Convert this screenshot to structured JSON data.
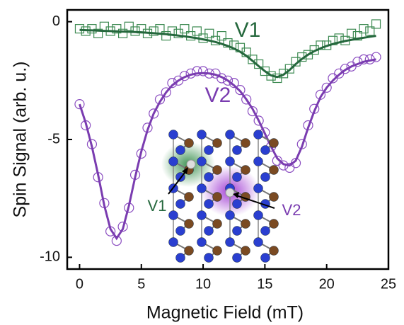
{
  "chart_data": {
    "type": "scatter",
    "x_label": "Magnetic Field (mT)",
    "y_label": "Spin Signal (arb. u.)",
    "x": [
      0,
      0.5,
      1,
      1.5,
      2,
      2.5,
      3,
      3.5,
      4,
      4.5,
      5,
      5.5,
      6,
      6.5,
      7,
      7.5,
      8,
      8.5,
      9,
      9.5,
      10,
      10.5,
      11,
      11.5,
      12,
      12.5,
      13,
      13.5,
      14,
      14.5,
      15,
      15.5,
      16,
      16.5,
      17,
      17.5,
      18,
      18.5,
      19,
      19.5,
      20,
      20.5,
      21,
      21.5,
      22,
      22.5,
      23,
      23.5,
      24
    ],
    "series": [
      {
        "color": "#3d8a52",
        "marker": "square",
        "values": [
          -0.3,
          -0.4,
          -0.3,
          -0.5,
          -0.2,
          -0.4,
          -0.3,
          -0.5,
          -0.2,
          -0.4,
          -0.3,
          -0.5,
          -0.4,
          -0.3,
          -0.6,
          -0.4,
          -0.5,
          -0.3,
          -0.6,
          -0.4,
          -0.7,
          -0.5,
          -0.8,
          -0.6,
          -0.9,
          -1.0,
          -1.1,
          -1.3,
          -1.6,
          -1.8,
          -2.1,
          -2.3,
          -2.4,
          -2.2,
          -2.0,
          -1.7,
          -1.5,
          -1.4,
          -1.2,
          -1.0,
          -1.0,
          -0.8,
          -0.7,
          -0.8,
          -0.5,
          -0.6,
          -0.3,
          -0.4,
          -0.1
        ]
      },
      {
        "color": "#25683d",
        "marker": "line",
        "values": [
          -0.35,
          -0.36,
          -0.37,
          -0.38,
          -0.39,
          -0.4,
          -0.41,
          -0.42,
          -0.43,
          -0.44,
          -0.45,
          -0.47,
          -0.49,
          -0.51,
          -0.53,
          -0.56,
          -0.59,
          -0.62,
          -0.66,
          -0.7,
          -0.75,
          -0.8,
          -0.86,
          -0.94,
          -1.03,
          -1.14,
          -1.28,
          -1.45,
          -1.66,
          -1.89,
          -2.1,
          -2.28,
          -2.35,
          -2.25,
          -2.05,
          -1.8,
          -1.58,
          -1.4,
          -1.25,
          -1.13,
          -1.03,
          -0.95,
          -0.88,
          -0.82,
          -0.77,
          -0.72,
          -0.68,
          -0.64,
          -0.6
        ]
      },
      {
        "color": "#8a4cc0",
        "marker": "circle",
        "values": [
          -3.5,
          -4.4,
          -5.2,
          -6.6,
          -7.7,
          -8.9,
          -9.3,
          -8.7,
          -7.9,
          -6.5,
          -5.6,
          -4.5,
          -3.9,
          -3.3,
          -3.0,
          -2.6,
          -2.5,
          -2.3,
          -2.2,
          -2.1,
          -2.1,
          -2.2,
          -2.2,
          -2.4,
          -2.5,
          -2.6,
          -2.9,
          -3.3,
          -3.8,
          -4.2,
          -4.7,
          -5.3,
          -5.9,
          -6.1,
          -6.2,
          -6.0,
          -5.2,
          -4.4,
          -3.7,
          -3.1,
          -2.8,
          -2.4,
          -2.2,
          -2.0,
          -1.9,
          -1.7,
          -1.6,
          -1.6,
          -1.5
        ]
      },
      {
        "color": "#7a3cb0",
        "marker": "line",
        "values": [
          -3.5,
          -4.3,
          -5.3,
          -6.5,
          -7.8,
          -8.8,
          -9.2,
          -8.8,
          -7.8,
          -6.6,
          -5.5,
          -4.6,
          -3.9,
          -3.4,
          -3.0,
          -2.7,
          -2.5,
          -2.35,
          -2.25,
          -2.2,
          -2.18,
          -2.2,
          -2.25,
          -2.35,
          -2.5,
          -2.7,
          -2.95,
          -3.3,
          -3.7,
          -4.2,
          -4.75,
          -5.3,
          -5.8,
          -6.05,
          -6.1,
          -5.9,
          -5.3,
          -4.5,
          -3.8,
          -3.2,
          -2.8,
          -2.5,
          -2.25,
          -2.05,
          -1.9,
          -1.8,
          -1.7,
          -1.65,
          -1.6
        ]
      }
    ],
    "annotations": [
      "V1",
      "V2",
      "V1",
      "V2"
    ],
    "xlim": [
      -1,
      25
    ],
    "ylim": [
      -10.5,
      0.5
    ],
    "xticks": [
      0,
      5,
      10,
      15,
      20,
      25
    ],
    "yticks": [
      0,
      -5,
      -10
    ]
  }
}
